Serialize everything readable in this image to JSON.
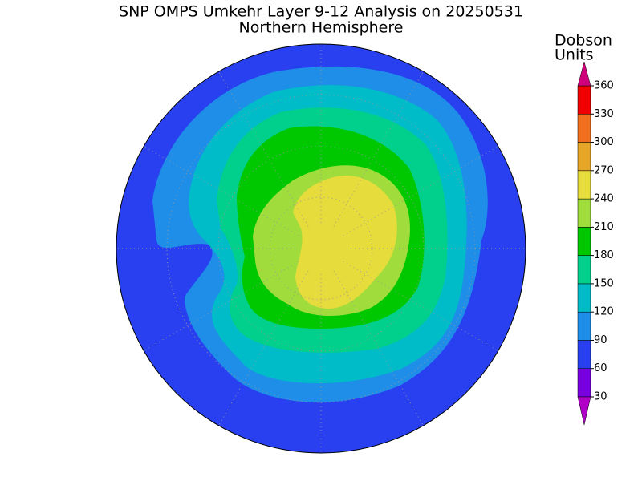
{
  "title": "SNP OMPS Umkehr Layer 9-12 Analysis on 20250531",
  "subtitle": "Northern Hemisphere",
  "colorbar": {
    "label_lines": [
      "Dobson",
      "Units"
    ],
    "ticks": [
      30,
      60,
      90,
      120,
      150,
      180,
      210,
      240,
      270,
      300,
      330,
      360
    ],
    "colors": [
      "#b000c8",
      "#7800e0",
      "#2840f0",
      "#1e8ee8",
      "#00bcc8",
      "#00d08c",
      "#00c800",
      "#a0dc3c",
      "#e6dc3c",
      "#e6a628",
      "#f07020",
      "#f00000",
      "#d0007c"
    ]
  }
}
